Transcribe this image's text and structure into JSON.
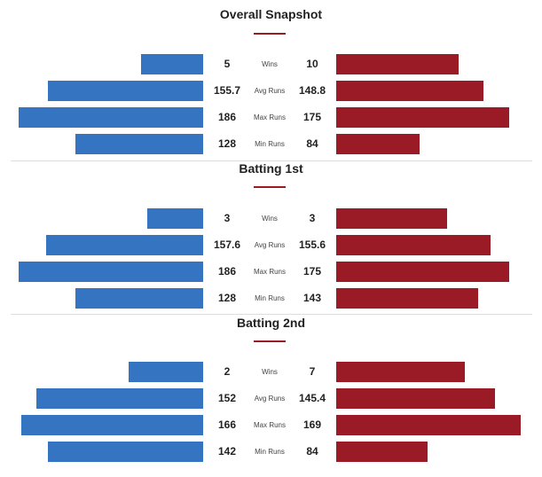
{
  "colors": {
    "team_left": "#3474c1",
    "team_right": "#9a1a26",
    "accent": "#9a1a26"
  },
  "sections": [
    {
      "title": "Overall Snapshot",
      "rows": [
        {
          "label": "Wins",
          "left": "5",
          "right": "10"
        },
        {
          "label": "Avg Runs",
          "left": "155.7",
          "right": "148.8"
        },
        {
          "label": "Max Runs",
          "left": "186",
          "right": "175"
        },
        {
          "label": "Min Runs",
          "left": "128",
          "right": "84"
        }
      ]
    },
    {
      "title": "Batting 1st",
      "rows": [
        {
          "label": "Wins",
          "left": "3",
          "right": "3"
        },
        {
          "label": "Avg Runs",
          "left": "157.6",
          "right": "155.6"
        },
        {
          "label": "Max Runs",
          "left": "186",
          "right": "175"
        },
        {
          "label": "Min Runs",
          "left": "128",
          "right": "143"
        }
      ]
    },
    {
      "title": "Batting 2nd",
      "rows": [
        {
          "label": "Wins",
          "left": "2",
          "right": "7"
        },
        {
          "label": "Avg Runs",
          "left": "152",
          "right": "145.4"
        },
        {
          "label": "Max Runs",
          "left": "166",
          "right": "169"
        },
        {
          "label": "Min Runs",
          "left": "142",
          "right": "84"
        }
      ]
    }
  ]
}
